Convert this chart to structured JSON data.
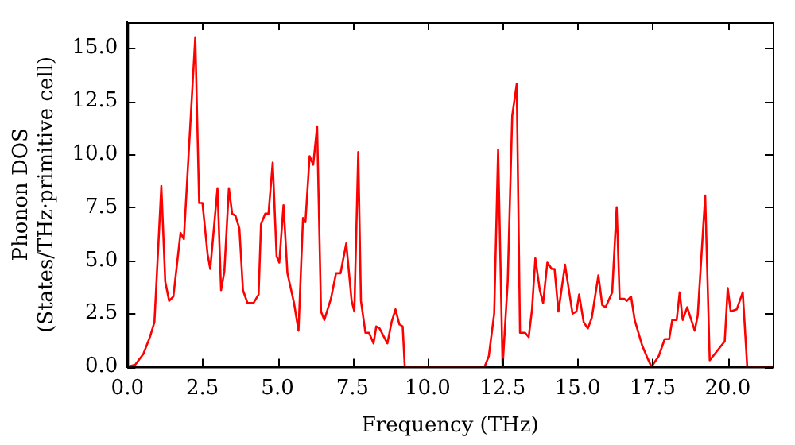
{
  "chart_data": {
    "type": "line",
    "xlabel": "Frequency (THz)",
    "ylabel": "Phonon DOS\n(States/THz·primitive cell)",
    "xlim": [
      0,
      21.5
    ],
    "ylim": [
      0,
      16.2
    ],
    "xticks": [
      {
        "value": 0,
        "label": "0.0"
      },
      {
        "value": 2.5,
        "label": "2.5"
      },
      {
        "value": 5,
        "label": "5.0"
      },
      {
        "value": 7.5,
        "label": "7.5"
      },
      {
        "value": 10,
        "label": "10.0"
      },
      {
        "value": 12.5,
        "label": "12.5"
      },
      {
        "value": 15,
        "label": "15.0"
      },
      {
        "value": 17.5,
        "label": "17.5"
      },
      {
        "value": 20,
        "label": "20.0"
      }
    ],
    "yticks": [
      {
        "value": 0,
        "label": "0.0"
      },
      {
        "value": 2.5,
        "label": "2.5"
      },
      {
        "value": 5,
        "label": "5.0"
      },
      {
        "value": 7.5,
        "label": "7.5"
      },
      {
        "value": 10,
        "label": "10.0"
      },
      {
        "value": 12.5,
        "label": "12.5"
      },
      {
        "value": 15,
        "label": "15.0"
      }
    ],
    "grid": false,
    "legend": false,
    "marker": "none",
    "line_style": "solid",
    "series": [
      {
        "color": "#ff0000",
        "x": [
          0,
          0.26,
          0.53,
          0.75,
          0.9,
          1.13,
          1.26,
          1.39,
          1.53,
          1.77,
          1.88,
          2.26,
          2.39,
          2.5,
          2.67,
          2.76,
          3.0,
          3.12,
          3.23,
          3.38,
          3.49,
          3.6,
          3.73,
          3.85,
          4.0,
          4.2,
          4.37,
          4.45,
          4.59,
          4.7,
          4.84,
          4.97,
          5.06,
          5.2,
          5.33,
          5.55,
          5.7,
          5.85,
          5.93,
          6.07,
          6.19,
          6.32,
          6.45,
          6.56,
          6.78,
          6.95,
          7.1,
          7.29,
          7.47,
          7.56,
          7.69,
          7.78,
          7.93,
          8.05,
          8.2,
          8.29,
          8.4,
          8.66,
          8.8,
          8.93,
          9.06,
          9.17,
          9.24,
          11.9,
          12.04,
          12.22,
          12.35,
          12.5,
          12.67,
          12.82,
          12.97,
          13.08,
          13.25,
          13.37,
          13.48,
          13.59,
          13.74,
          13.85,
          13.99,
          14.14,
          14.23,
          14.36,
          14.58,
          14.72,
          14.83,
          14.96,
          15.05,
          15.2,
          15.34,
          15.47,
          15.69,
          15.82,
          15.93,
          16.15,
          16.3,
          16.4,
          16.55,
          16.64,
          16.78,
          16.9,
          17.15,
          17.33,
          17.46,
          17.7,
          17.9,
          18.05,
          18.15,
          18.3,
          18.4,
          18.5,
          18.65,
          18.9,
          19.0,
          19.25,
          19.4,
          19.9,
          20.0,
          20.1,
          20.3,
          20.5,
          20.65,
          21.5
        ],
        "values": [
          0,
          0.1,
          0.6,
          1.4,
          2.1,
          8.5,
          4.0,
          3.1,
          3.3,
          6.3,
          6.0,
          15.5,
          7.7,
          7.7,
          5.3,
          4.6,
          8.4,
          3.6,
          4.5,
          8.4,
          7.2,
          7.1,
          6.5,
          3.6,
          3.0,
          3.0,
          3.4,
          6.7,
          7.2,
          7.2,
          9.6,
          5.2,
          4.9,
          7.6,
          4.4,
          3.0,
          1.7,
          7.0,
          6.8,
          9.9,
          9.5,
          11.3,
          2.6,
          2.2,
          3.2,
          4.4,
          4.4,
          5.8,
          3.1,
          2.6,
          10.1,
          3.1,
          1.6,
          1.6,
          1.1,
          1.9,
          1.8,
          1.1,
          2.1,
          2.7,
          2.0,
          1.9,
          0,
          0,
          0.5,
          2.5,
          10.2,
          0,
          4.0,
          11.8,
          13.3,
          1.6,
          1.6,
          1.4,
          2.7,
          5.1,
          3.6,
          3.0,
          4.9,
          4.6,
          4.6,
          2.6,
          4.8,
          3.5,
          2.5,
          2.6,
          3.4,
          2.1,
          1.8,
          2.3,
          4.3,
          2.9,
          2.8,
          3.5,
          7.5,
          3.2,
          3.2,
          3.1,
          3.3,
          2.2,
          1.0,
          0.4,
          0,
          0.5,
          1.3,
          1.3,
          2.2,
          2.2,
          3.5,
          2.2,
          2.8,
          1.7,
          2.4,
          8.05,
          0.3,
          1.2,
          3.7,
          2.6,
          2.7,
          3.5,
          0,
          0
        ]
      }
    ]
  }
}
